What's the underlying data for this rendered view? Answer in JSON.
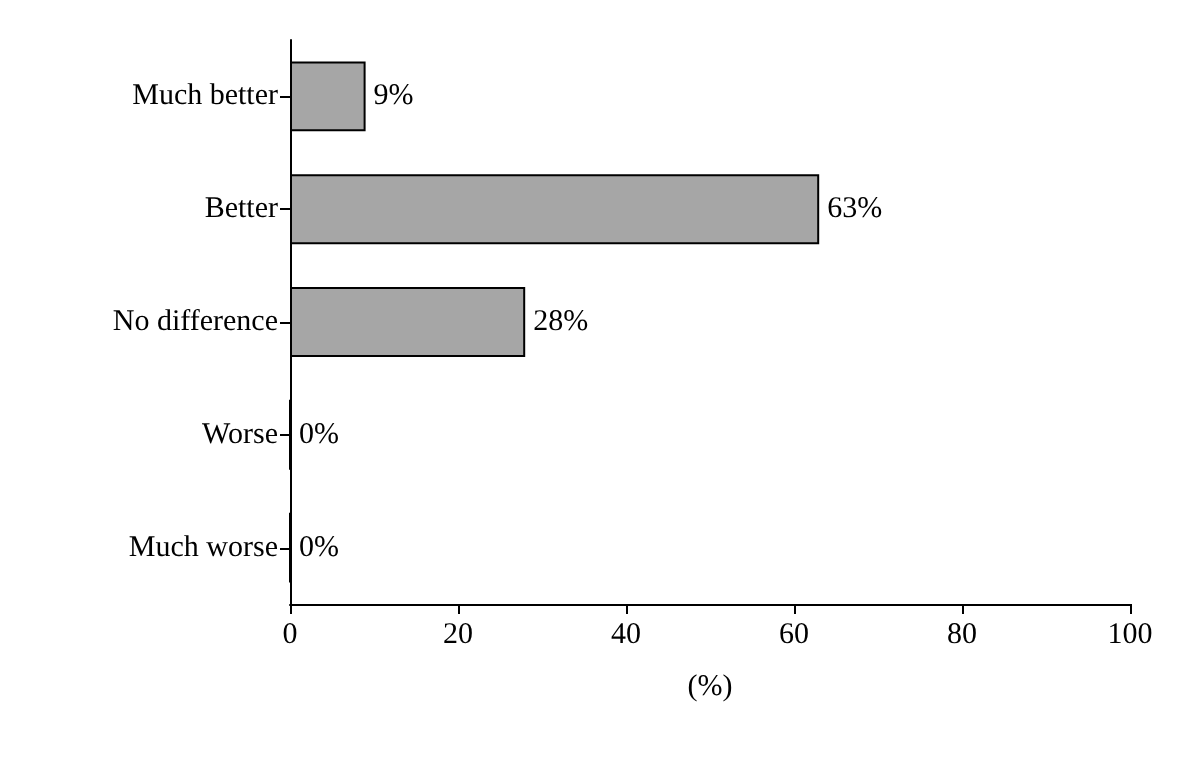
{
  "chart_data": {
    "type": "bar",
    "orientation": "horizontal",
    "xlabel": "(%)",
    "categories": [
      "Much better",
      "Better",
      "No difference",
      "Worse",
      "Much worse"
    ],
    "values": [
      9,
      63,
      28,
      0,
      0
    ],
    "value_labels": [
      "9%",
      "63%",
      "28%",
      "0%",
      "0%"
    ],
    "color": "#a6a6a6",
    "xlim": [
      0,
      100
    ],
    "xticks": [
      0,
      20,
      40,
      60,
      80,
      100
    ],
    "grid": false
  }
}
